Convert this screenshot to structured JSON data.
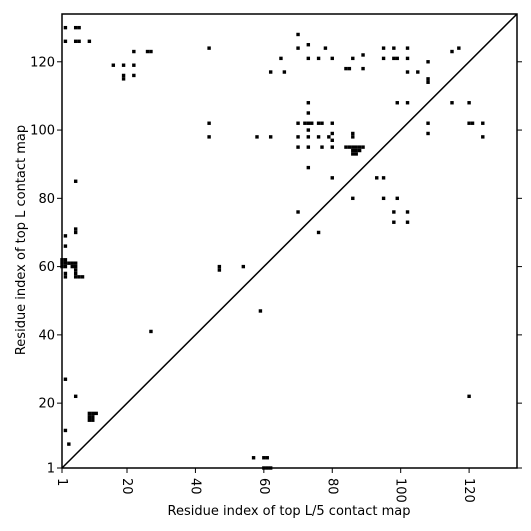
{
  "chart_data": {
    "type": "scatter",
    "title": "",
    "xlabel": "Residue index of top L/5 contact map",
    "ylabel": "Residue index of top L contact map",
    "xlim": [
      1,
      134
    ],
    "ylim": [
      1,
      134
    ],
    "x_ticks": [
      1,
      20,
      40,
      60,
      80,
      100,
      120
    ],
    "y_ticks": [
      1,
      20,
      40,
      60,
      80,
      100,
      120
    ],
    "x_tick_labels": [
      "1",
      "20",
      "40",
      "60",
      "80",
      "100",
      "120"
    ],
    "y_tick_labels": [
      "1",
      "20",
      "40",
      "60",
      "80",
      "100",
      "120"
    ],
    "x_tick_rotation": 90,
    "diagonal": true,
    "grid": false,
    "marker": "square",
    "marker_color": "#000000",
    "series": [
      {
        "values_upper_triangle": [
          [
            2,
            130
          ],
          [
            5,
            130
          ],
          [
            6,
            130
          ],
          [
            2,
            126
          ],
          [
            5,
            126
          ],
          [
            6,
            126
          ],
          [
            9,
            126
          ],
          [
            70,
            128
          ],
          [
            16,
            119
          ],
          [
            19,
            119
          ],
          [
            22,
            119
          ],
          [
            19,
            116
          ],
          [
            19,
            115
          ],
          [
            22,
            116
          ],
          [
            22,
            123
          ],
          [
            26,
            123
          ],
          [
            27,
            123
          ],
          [
            44,
            124
          ],
          [
            62,
            117
          ],
          [
            65,
            121
          ],
          [
            66,
            117
          ],
          [
            70,
            124
          ],
          [
            73,
            125
          ],
          [
            73,
            121
          ],
          [
            76,
            121
          ],
          [
            78,
            124
          ],
          [
            80,
            121
          ],
          [
            84,
            118
          ],
          [
            85,
            118
          ],
          [
            86,
            121
          ],
          [
            89,
            122
          ],
          [
            89,
            118
          ],
          [
            95,
            124
          ],
          [
            95,
            121
          ],
          [
            98,
            124
          ],
          [
            98,
            121
          ],
          [
            99,
            121
          ],
          [
            102,
            124
          ],
          [
            102,
            121
          ],
          [
            102,
            117
          ],
          [
            105,
            117
          ],
          [
            108,
            120
          ],
          [
            108,
            115
          ],
          [
            108,
            114
          ],
          [
            115,
            123
          ],
          [
            117,
            124
          ],
          [
            44,
            102
          ],
          [
            44,
            98
          ],
          [
            58,
            98
          ],
          [
            62,
            98
          ],
          [
            70,
            102
          ],
          [
            70,
            98
          ],
          [
            70,
            95
          ],
          [
            73,
            108
          ],
          [
            73,
            105
          ],
          [
            73,
            102
          ],
          [
            73,
            100
          ],
          [
            73,
            98
          ],
          [
            73,
            95
          ],
          [
            72,
            102
          ],
          [
            74,
            102
          ],
          [
            76,
            102
          ],
          [
            77,
            102
          ],
          [
            76,
            98
          ],
          [
            77,
            95
          ],
          [
            79,
            98
          ],
          [
            80,
            99
          ],
          [
            80,
            97
          ],
          [
            80,
            102
          ],
          [
            80,
            95
          ],
          [
            84,
            95
          ],
          [
            85,
            95
          ],
          [
            86,
            95
          ],
          [
            86,
            94
          ],
          [
            86,
            93
          ],
          [
            87,
            95
          ],
          [
            87,
            94
          ],
          [
            87,
            93
          ],
          [
            88,
            95
          ],
          [
            88,
            94
          ],
          [
            89,
            95
          ],
          [
            86,
            99
          ],
          [
            86,
            98
          ],
          [
            99,
            108
          ],
          [
            102,
            108
          ],
          [
            108,
            102
          ],
          [
            108,
            99
          ],
          [
            115,
            108
          ],
          [
            120,
            108
          ],
          [
            120,
            102
          ],
          [
            121,
            102
          ],
          [
            124,
            102
          ],
          [
            124,
            98
          ],
          [
            73,
            89
          ],
          [
            80,
            86
          ],
          [
            93,
            86
          ],
          [
            95,
            86
          ],
          [
            86,
            80
          ],
          [
            95,
            80
          ],
          [
            99,
            80
          ],
          [
            98,
            76
          ],
          [
            98,
            73
          ],
          [
            102,
            76
          ],
          [
            102,
            73
          ],
          [
            70,
            76
          ],
          [
            76,
            70
          ],
          [
            120,
            22
          ],
          [
            27,
            41
          ]
        ],
        "values_lower_triangle": [
          [
            5,
            85
          ],
          [
            2,
            69
          ],
          [
            2,
            66
          ],
          [
            5,
            71
          ],
          [
            5,
            70
          ],
          [
            1,
            62
          ],
          [
            2,
            62
          ],
          [
            1,
            61
          ],
          [
            2,
            61
          ],
          [
            3,
            61
          ],
          [
            4,
            61
          ],
          [
            5,
            61
          ],
          [
            1,
            60
          ],
          [
            2,
            60
          ],
          [
            4,
            60
          ],
          [
            5,
            60
          ],
          [
            5,
            59
          ],
          [
            5,
            58
          ],
          [
            5,
            57
          ],
          [
            6,
            57
          ],
          [
            7,
            57
          ],
          [
            2,
            58
          ],
          [
            2,
            57
          ],
          [
            47,
            60
          ],
          [
            47,
            59
          ],
          [
            54,
            60
          ],
          [
            59,
            47
          ],
          [
            2,
            27
          ],
          [
            5,
            22
          ],
          [
            2,
            12
          ],
          [
            3,
            8
          ],
          [
            9,
            17
          ],
          [
            10,
            17
          ],
          [
            11,
            17
          ],
          [
            9,
            16
          ],
          [
            10,
            16
          ],
          [
            9,
            15
          ],
          [
            10,
            15
          ],
          [
            57,
            4
          ],
          [
            60,
            4
          ],
          [
            61,
            4
          ],
          [
            60,
            1
          ],
          [
            61,
            1
          ],
          [
            62,
            1
          ]
        ]
      }
    ]
  }
}
